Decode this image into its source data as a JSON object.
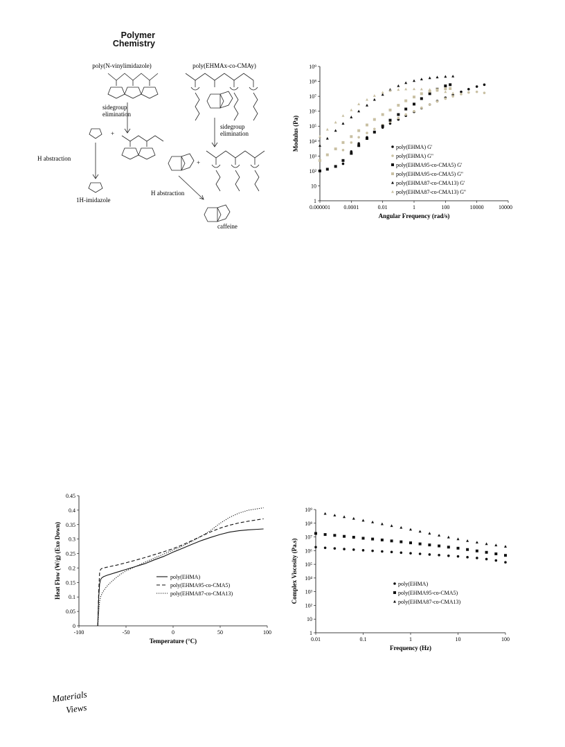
{
  "journal": {
    "line1": "Polymer",
    "line2": "Chemistry"
  },
  "brand": {
    "line1": "Materials",
    "line2": "Views"
  },
  "scheme": {
    "left_polymer": "poly(N-vinylimidazole)",
    "right_polymer": "poly(EHMAx-co-CMAy)",
    "step_elimination_left": [
      "sidegroup",
      "elimination"
    ],
    "step_elimination_right": [
      "sidegroup",
      "elimination"
    ],
    "h_abstraction_left": "H abstraction",
    "h_abstraction_right": "H abstraction",
    "product_left": "1H-imidazole",
    "product_right": "caffeine",
    "plus": "+"
  },
  "chart_data": [
    {
      "id": "modulus",
      "type": "scatter",
      "xlabel": "Angular Frequency (rad/s)",
      "ylabel": "Modulus (Pa)",
      "xscale": "log",
      "yscale": "log",
      "xlim": [
        1e-06,
        1000000.0
      ],
      "ylim": [
        1,
        1000000000.0
      ],
      "xticks": [
        "0.000001",
        "0.0001",
        "0.01",
        "1",
        "100",
        "10000",
        "1000000"
      ],
      "yticks": [
        "1",
        "10",
        "10²",
        "10³",
        "10⁴",
        "10⁵",
        "10⁶",
        "10⁷",
        "10⁸",
        "10⁹"
      ],
      "legend_position": "bottom-right",
      "series": [
        {
          "name": "poly(EHMA) G'",
          "marker": "circle",
          "color": "#111111",
          "x": [
            3e-05,
            0.0001,
            0.0003,
            0.001,
            0.003,
            0.01,
            0.03,
            0.1,
            0.3,
            1,
            3,
            10,
            30,
            100,
            300,
            1000,
            3000,
            10000,
            30000
          ],
          "y": [
            300,
            2000,
            7000,
            18000,
            40000,
            80000,
            150000,
            280000,
            500000,
            900000,
            1600000,
            2800000,
            4800000,
            8000000,
            13000000,
            20000000,
            30000000,
            45000000,
            60000000
          ]
        },
        {
          "name": "poly(EHMA) G''",
          "marker": "circle",
          "color": "#c9c0a3",
          "x": [
            3e-05,
            0.0001,
            0.0003,
            0.001,
            0.003,
            0.01,
            0.03,
            0.1,
            0.3,
            1,
            3,
            10,
            30,
            100,
            300,
            1000,
            3000,
            10000,
            30000
          ],
          "y": [
            2500,
            8000,
            18000,
            35000,
            65000,
            120000,
            200000,
            350000,
            600000,
            1000000,
            1700000,
            2800000,
            4500000,
            7000000,
            10000000,
            14000000,
            18000000,
            20000000,
            17000000
          ]
        },
        {
          "name": "poly(EHMA95-co-CMA5) G'",
          "marker": "square",
          "color": "#111111",
          "x": [
            1e-06,
            3e-06,
            1e-05,
            3e-05,
            0.0001,
            0.0003,
            0.001,
            0.003,
            0.01,
            0.03,
            0.1,
            0.3,
            1,
            3,
            10,
            30,
            100,
            200
          ],
          "y": [
            100,
            130,
            200,
            500,
            1500,
            5000,
            15000,
            40000,
            100000,
            250000,
            600000,
            1400000,
            3000000,
            7000000,
            15000000,
            30000000,
            50000000,
            60000000
          ]
        },
        {
          "name": "poly(EHMA95-co-CMA5) G''",
          "marker": "square",
          "color": "#c9c0a3",
          "x": [
            1e-06,
            3e-06,
            1e-05,
            3e-05,
            0.0001,
            0.0003,
            0.001,
            0.003,
            0.01,
            0.03,
            0.1,
            0.3,
            1,
            3,
            10,
            30,
            100,
            200
          ],
          "y": [
            500,
            1200,
            3000,
            8000,
            20000,
            50000,
            120000,
            280000,
            600000,
            1200000,
            2500000,
            5000000,
            9000000,
            15000000,
            22000000,
            28000000,
            32000000,
            33000000
          ]
        },
        {
          "name": "poly(EHMA87-co-CMA13) G'",
          "marker": "triangle",
          "color": "#111111",
          "x": [
            1e-06,
            3e-06,
            1e-05,
            3e-05,
            0.0001,
            0.0003,
            0.001,
            0.003,
            0.01,
            0.03,
            0.1,
            0.3,
            1,
            3,
            10,
            30,
            100,
            300
          ],
          "y": [
            5000,
            15000,
            50000,
            150000,
            400000,
            1000000,
            2500000,
            6000000,
            13000000,
            28000000,
            50000000,
            80000000,
            110000000,
            140000000,
            170000000,
            190000000,
            210000000,
            220000000
          ]
        },
        {
          "name": "poly(EHMA87-co-CMA13) G''",
          "marker": "triangle",
          "color": "#c9c0a3",
          "x": [
            1e-06,
            3e-06,
            1e-05,
            3e-05,
            0.0001,
            0.0003,
            0.001,
            0.003,
            0.01,
            0.03,
            0.1,
            0.3,
            1,
            3,
            10,
            30,
            100,
            300
          ],
          "y": [
            20000,
            60000,
            180000,
            500000,
            1200000,
            3000000,
            6000000,
            11000000,
            18000000,
            24000000,
            28000000,
            30000000,
            31000000,
            30000000,
            28000000,
            24000000,
            20000000,
            16000000
          ]
        }
      ]
    },
    {
      "id": "dsc",
      "type": "line",
      "xlabel": "Temperature (°C)",
      "ylabel": "Heat Flow (W/g) (Exo Down)",
      "xlim": [
        -100,
        100
      ],
      "ylim": [
        0,
        0.45
      ],
      "xticks": [
        "-100",
        "-50",
        "0",
        "50",
        "100"
      ],
      "yticks": [
        "0",
        "0.05",
        "0.1",
        "0.15",
        "0.2",
        "0.25",
        "0.3",
        "0.35",
        "0.4",
        "0.45"
      ],
      "legend_position": "center-right",
      "series": [
        {
          "name": "poly(EHMA)",
          "dash": "solid",
          "x": [
            -80,
            -79,
            -78,
            -77,
            -76,
            -74,
            -70,
            -60,
            -50,
            -40,
            -30,
            -20,
            -10,
            0,
            10,
            20,
            30,
            40,
            50,
            60,
            70,
            80,
            90,
            96
          ],
          "y": [
            0,
            0.1,
            0.145,
            0.16,
            0.165,
            0.17,
            0.175,
            0.185,
            0.195,
            0.205,
            0.215,
            0.228,
            0.24,
            0.255,
            0.268,
            0.282,
            0.295,
            0.306,
            0.316,
            0.324,
            0.329,
            0.332,
            0.334,
            0.335
          ]
        },
        {
          "name": "poly(EHMA95-co-CMA5)",
          "dash": "dashed",
          "x": [
            -80,
            -79,
            -78,
            -77,
            -76,
            -74,
            -70,
            -60,
            -50,
            -40,
            -30,
            -20,
            -10,
            0,
            10,
            20,
            30,
            40,
            50,
            60,
            70,
            80,
            90,
            96
          ],
          "y": [
            0,
            0.12,
            0.185,
            0.195,
            0.198,
            0.2,
            0.203,
            0.21,
            0.218,
            0.227,
            0.236,
            0.246,
            0.256,
            0.267,
            0.28,
            0.295,
            0.31,
            0.325,
            0.338,
            0.348,
            0.356,
            0.362,
            0.367,
            0.37
          ]
        },
        {
          "name": "poly(EHMA87-co-CMA13)",
          "dash": "dotted",
          "x": [
            -80,
            -79,
            -78,
            -77,
            -75,
            -72,
            -68,
            -64,
            -60,
            -55,
            -50,
            -40,
            -30,
            -20,
            -10,
            0,
            10,
            20,
            30,
            40,
            50,
            60,
            70,
            80,
            90,
            96
          ],
          "y": [
            0,
            0.05,
            0.085,
            0.1,
            0.115,
            0.13,
            0.145,
            0.157,
            0.168,
            0.18,
            0.19,
            0.205,
            0.22,
            0.234,
            0.248,
            0.262,
            0.276,
            0.292,
            0.31,
            0.33,
            0.355,
            0.375,
            0.39,
            0.4,
            0.405,
            0.408
          ]
        }
      ]
    },
    {
      "id": "viscosity",
      "type": "scatter",
      "xlabel": "Frequency (Hz)",
      "ylabel": "Complex Viscosity (Pa.s)",
      "xscale": "log",
      "yscale": "log",
      "xlim": [
        0.01,
        100
      ],
      "ylim": [
        1,
        1000000000.0
      ],
      "xticks": [
        "0.01",
        "0.1",
        "1",
        "10",
        "100"
      ],
      "yticks": [
        "1",
        "10",
        "10²",
        "10³",
        "10⁴",
        "10⁵",
        "10⁶",
        "10⁷",
        "10⁸",
        "10⁹"
      ],
      "legend_position": "center-right",
      "series": [
        {
          "name": "poly(EHMA)",
          "marker": "circle",
          "x": [
            0.01,
            0.0158,
            0.0251,
            0.0398,
            0.0631,
            0.1,
            0.158,
            0.251,
            0.398,
            0.631,
            1,
            1.58,
            2.51,
            3.98,
            6.31,
            10,
            15.8,
            25.1,
            39.8,
            63.1,
            100
          ],
          "y": [
            1800000,
            1600000,
            1450000,
            1300000,
            1180000,
            1060000,
            960000,
            870000,
            790000,
            710000,
            640000,
            580000,
            520000,
            470000,
            420000,
            380000,
            330000,
            290000,
            240000,
            190000,
            140000
          ]
        },
        {
          "name": "poly(EHMA95-co-CMA5)",
          "marker": "square",
          "x": [
            0.01,
            0.0158,
            0.0251,
            0.0398,
            0.0631,
            0.1,
            0.158,
            0.251,
            0.398,
            0.631,
            1,
            1.58,
            2.51,
            3.98,
            6.31,
            10,
            15.8,
            25.1,
            39.8,
            63.1,
            100
          ],
          "y": [
            18000000,
            15000000,
            13000000,
            11000000,
            9500000,
            8000000,
            7000000,
            6000000,
            5100000,
            4400000,
            3700000,
            3100000,
            2600000,
            2200000,
            1800000,
            1500000,
            1200000,
            950000,
            750000,
            580000,
            450000
          ]
        },
        {
          "name": "poly(EHMA87-co-CMA13)",
          "marker": "triangle",
          "x": [
            0.0158,
            0.0251,
            0.0398,
            0.0631,
            0.1,
            0.158,
            0.251,
            0.398,
            0.631,
            1,
            1.58,
            2.51,
            3.98,
            6.31,
            10,
            15.8,
            25.1,
            39.8,
            63.1,
            100
          ],
          "y": [
            500000000,
            380000000,
            290000000,
            220000000,
            160000000,
            120000000,
            88000000,
            65000000,
            48000000,
            35000000,
            25000000,
            18000000,
            13000000,
            9500000,
            7000000,
            5200000,
            4000000,
            3100000,
            2500000,
            2000000
          ]
        }
      ]
    }
  ]
}
